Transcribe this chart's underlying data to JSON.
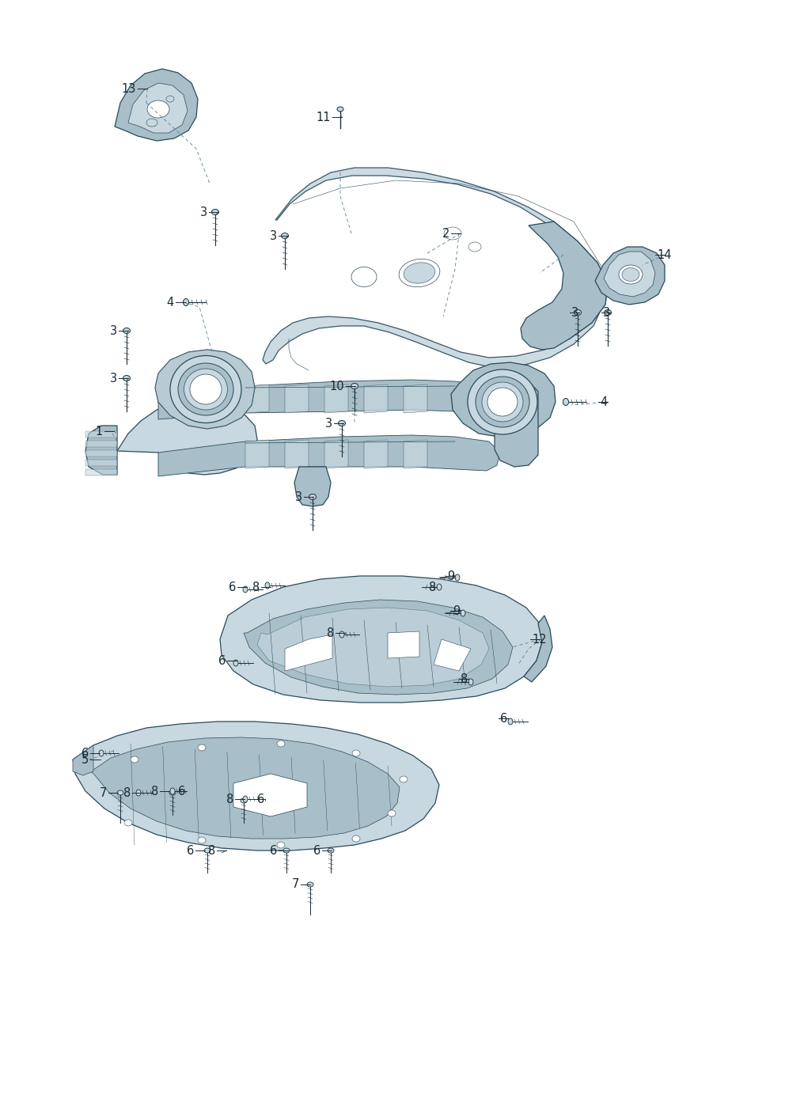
{
  "bg_color": "#ffffff",
  "fill_light": "#c8d8e0",
  "fill_mid": "#a8bec8",
  "fill_dark": "#7a9aaa",
  "fill_darker": "#5a7a8a",
  "edge_color": "#2a4a5a",
  "edge_dark": "#1a2e38",
  "label_color": "#1a2a32",
  "dash_color": "#5a8090",
  "lw_main": 0.9,
  "lw_detail": 0.5,
  "lw_label": 0.6,
  "font_size": 10.5
}
